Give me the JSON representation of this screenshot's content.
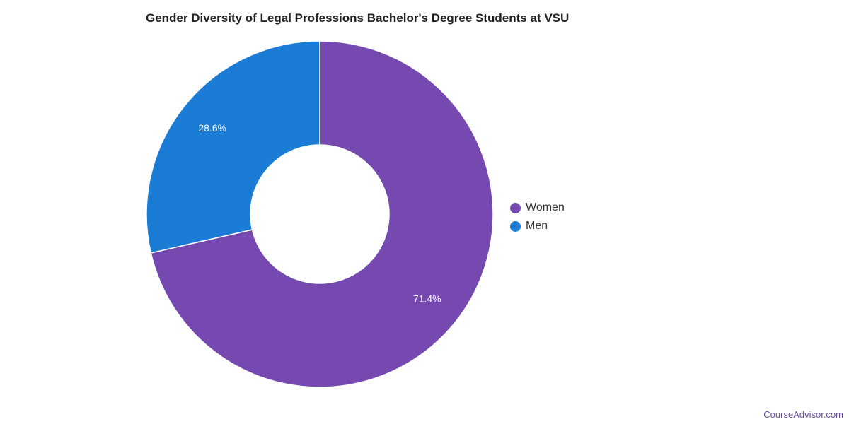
{
  "chart_data": {
    "type": "pie",
    "title": "Gender Diversity of Legal Professions Bachelor's Degree Students at VSU",
    "categories": [
      "Women",
      "Men"
    ],
    "values": [
      71.4,
      28.6
    ],
    "data_labels": [
      "71.4%",
      "28.6%"
    ],
    "colors": [
      "#7649b0",
      "#1a7cd4"
    ],
    "donut": true,
    "legend_position": "right"
  },
  "watermark": "CourseAdvisor.com"
}
